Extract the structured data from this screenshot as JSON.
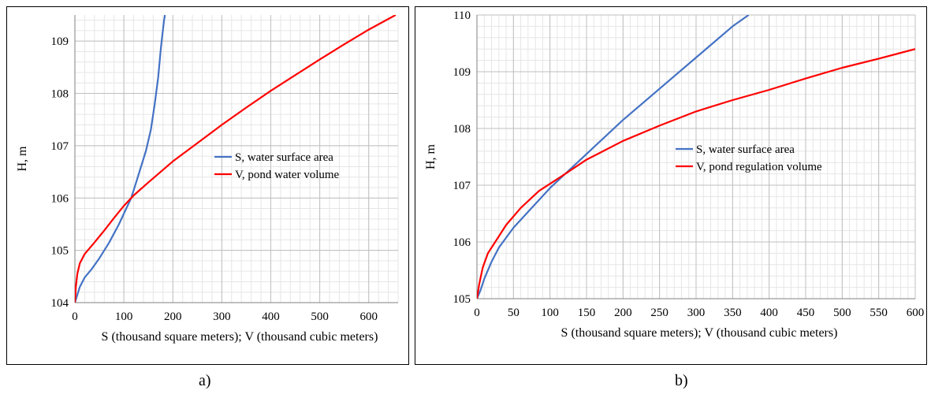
{
  "captions": {
    "a": "a)",
    "b": "b)"
  },
  "chart_data": [
    {
      "id": "a",
      "type": "line",
      "title": "",
      "xlabel": "S (thousand square meters); V (thousand cubic meters)",
      "ylabel": "H, m",
      "xlim": [
        0,
        660
      ],
      "ylim": [
        104,
        109.5
      ],
      "xticks": [
        0,
        100,
        200,
        300,
        400,
        500,
        600
      ],
      "yticks": [
        104,
        105,
        106,
        107,
        108,
        109
      ],
      "x_minor_step": 20,
      "y_minor_step": 0.2,
      "grid": true,
      "legend_position": "center-right",
      "series": [
        {
          "name": "S, water surface area",
          "color": "#4472c4",
          "points": [
            [
              0,
              104
            ],
            [
              5,
              104.15
            ],
            [
              10,
              104.3
            ],
            [
              20,
              104.48
            ],
            [
              35,
              104.65
            ],
            [
              50,
              104.85
            ],
            [
              70,
              105.15
            ],
            [
              90,
              105.5
            ],
            [
              105,
              105.8
            ],
            [
              115,
              106
            ],
            [
              125,
              106.3
            ],
            [
              135,
              106.6
            ],
            [
              145,
              106.9
            ],
            [
              155,
              107.3
            ],
            [
              163,
              107.8
            ],
            [
              170,
              108.3
            ],
            [
              176,
              108.9
            ],
            [
              182,
              109.4
            ],
            [
              184,
              109.5
            ]
          ]
        },
        {
          "name": "V, pond water volume",
          "color": "#ff0000",
          "points": [
            [
              0,
              104
            ],
            [
              2,
              104.3
            ],
            [
              5,
              104.55
            ],
            [
              10,
              104.75
            ],
            [
              20,
              104.93
            ],
            [
              40,
              105.15
            ],
            [
              60,
              105.38
            ],
            [
              80,
              105.62
            ],
            [
              100,
              105.85
            ],
            [
              120,
              106.05
            ],
            [
              150,
              106.3
            ],
            [
              200,
              106.7
            ],
            [
              250,
              107.05
            ],
            [
              300,
              107.4
            ],
            [
              350,
              107.73
            ],
            [
              400,
              108.05
            ],
            [
              450,
              108.35
            ],
            [
              500,
              108.65
            ],
            [
              550,
              108.94
            ],
            [
              600,
              109.22
            ],
            [
              655,
              109.5
            ]
          ]
        }
      ]
    },
    {
      "id": "b",
      "type": "line",
      "title": "",
      "xlabel": "S (thousand square meters); V (thousand cubic meters)",
      "ylabel": "H, m",
      "xlim": [
        0,
        600
      ],
      "ylim": [
        105,
        110
      ],
      "xticks": [
        0,
        50,
        100,
        150,
        200,
        250,
        300,
        350,
        400,
        450,
        500,
        550,
        600
      ],
      "yticks": [
        105,
        106,
        107,
        108,
        109,
        110
      ],
      "x_minor_step": 10,
      "y_minor_step": 0.2,
      "grid": true,
      "legend_position": "center-right",
      "series": [
        {
          "name": "S, water surface area",
          "color": "#4472c4",
          "points": [
            [
              0,
              105
            ],
            [
              5,
              105.15
            ],
            [
              10,
              105.35
            ],
            [
              20,
              105.65
            ],
            [
              30,
              105.9
            ],
            [
              50,
              106.25
            ],
            [
              75,
              106.6
            ],
            [
              100,
              106.95
            ],
            [
              125,
              107.25
            ],
            [
              150,
              107.55
            ],
            [
              200,
              108.15
            ],
            [
              250,
              108.7
            ],
            [
              300,
              109.25
            ],
            [
              350,
              109.8
            ],
            [
              372,
              110
            ]
          ]
        },
        {
          "name": "V, pond regulation volume",
          "color": "#ff0000",
          "points": [
            [
              0,
              105
            ],
            [
              3,
              105.25
            ],
            [
              8,
              105.55
            ],
            [
              15,
              105.8
            ],
            [
              25,
              106
            ],
            [
              40,
              106.3
            ],
            [
              60,
              106.6
            ],
            [
              85,
              106.9
            ],
            [
              115,
              107.15
            ],
            [
              150,
              107.45
            ],
            [
              200,
              107.78
            ],
            [
              250,
              108.05
            ],
            [
              300,
              108.3
            ],
            [
              350,
              108.5
            ],
            [
              400,
              108.68
            ],
            [
              450,
              108.88
            ],
            [
              500,
              109.07
            ],
            [
              550,
              109.23
            ],
            [
              600,
              109.4
            ]
          ]
        }
      ]
    }
  ]
}
